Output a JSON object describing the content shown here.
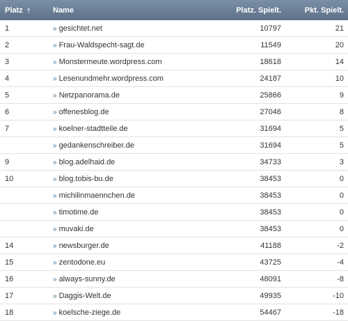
{
  "table": {
    "headers": {
      "rank": "Platz",
      "name": "Name",
      "played_rank": "Platz. Spielt.",
      "points": "Pkt. Spielt."
    },
    "sort_indicator": "⇡",
    "link_marker": "»",
    "rows": [
      {
        "rank": "1",
        "name": "gesichtet.net",
        "played_rank": "10797",
        "points": "21"
      },
      {
        "rank": "2",
        "name": "Frau-Waldspecht-sagt.de",
        "played_rank": "11549",
        "points": "20"
      },
      {
        "rank": "3",
        "name": "Monstermeute.wordpress.com",
        "played_rank": "18618",
        "points": "14"
      },
      {
        "rank": "4",
        "name": "Lesenundmehr.wordpress.com",
        "played_rank": "24187",
        "points": "10"
      },
      {
        "rank": "5",
        "name": "Netzpanorama.de",
        "played_rank": "25866",
        "points": "9"
      },
      {
        "rank": "6",
        "name": "offenesblog.de",
        "played_rank": "27046",
        "points": "8"
      },
      {
        "rank": "7",
        "name": "koelner-stadtteile.de",
        "played_rank": "31694",
        "points": "5"
      },
      {
        "rank": "",
        "name": "gedankenschreiber.de",
        "played_rank": "31694",
        "points": "5"
      },
      {
        "rank": "9",
        "name": "blog.adelhaid.de",
        "played_rank": "34733",
        "points": "3"
      },
      {
        "rank": "10",
        "name": "blog.tobis-bu.de",
        "played_rank": "38453",
        "points": "0"
      },
      {
        "rank": "",
        "name": "michilinmaennchen.de",
        "played_rank": "38453",
        "points": "0"
      },
      {
        "rank": "",
        "name": "timotime.de",
        "played_rank": "38453",
        "points": "0"
      },
      {
        "rank": "",
        "name": "muvaki.de",
        "played_rank": "38453",
        "points": "0"
      },
      {
        "rank": "14",
        "name": "newsburger.de",
        "played_rank": "41188",
        "points": "-2"
      },
      {
        "rank": "15",
        "name": "zentodone.eu",
        "played_rank": "43725",
        "points": "-4"
      },
      {
        "rank": "16",
        "name": "always-sunny.de",
        "played_rank": "48091",
        "points": "-8"
      },
      {
        "rank": "17",
        "name": "Daggis-Welt.de",
        "played_rank": "49935",
        "points": "-10"
      },
      {
        "rank": "18",
        "name": "koelsche-ziege.de",
        "played_rank": "54467",
        "points": "-18"
      }
    ]
  }
}
